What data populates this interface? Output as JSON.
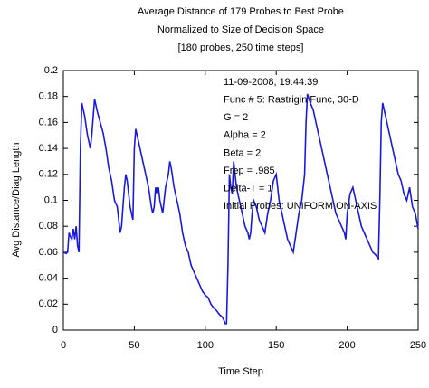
{
  "chart_data": {
    "type": "line",
    "title_lines": [
      "Average Distance of 179 Probes to Best Probe",
      "Normalized to Size of Decision Space",
      "[180 probes, 250 time steps]"
    ],
    "xlabel": "Time Step",
    "ylabel": "Avg Distance/Diag Length",
    "annotations": [
      "11-09-2008, 19:44:39",
      "Func # 5:  Rastrigin Func,  30-D",
      "G = 2",
      "Alpha = 2",
      "Beta = 2",
      "Frep = .985",
      "Delta-T = 1",
      "Initial Probes:  UNIFORM ON-AXIS"
    ],
    "xlim": [
      0,
      250
    ],
    "xticks": [
      0,
      50,
      100,
      150,
      200,
      250
    ],
    "ylim": [
      0,
      0.2
    ],
    "yticks": [
      0,
      0.02,
      0.04,
      0.06,
      0.08,
      0.1,
      0.12,
      0.14,
      0.16,
      0.18,
      0.2
    ],
    "grid": false,
    "series": [
      {
        "color": "#1a1adf",
        "x": [
          0,
          2,
          3,
          4,
          5,
          6,
          7,
          8,
          9,
          10,
          11,
          12,
          13,
          15,
          17,
          19,
          20,
          22,
          24,
          26,
          28,
          30,
          32,
          34,
          36,
          38,
          39,
          40,
          41,
          42,
          43,
          44,
          45,
          46,
          47,
          48,
          49,
          50,
          51,
          52,
          54,
          56,
          58,
          60,
          62,
          63,
          64,
          65,
          66,
          67,
          68,
          70,
          72,
          74,
          75,
          76,
          78,
          80,
          82,
          84,
          86,
          88,
          90,
          92,
          94,
          96,
          98,
          100,
          102,
          104,
          106,
          108,
          110,
          112,
          113,
          114,
          115,
          116,
          117,
          118,
          119,
          120,
          121,
          122,
          124,
          126,
          128,
          130,
          131,
          132,
          133,
          134,
          136,
          138,
          140,
          142,
          144,
          146,
          148,
          150,
          151,
          152,
          154,
          156,
          158,
          160,
          162,
          164,
          166,
          168,
          170,
          171,
          172,
          174,
          176,
          178,
          180,
          182,
          184,
          186,
          188,
          190,
          192,
          194,
          196,
          198,
          199,
          200,
          202,
          204,
          206,
          208,
          210,
          212,
          214,
          216,
          218,
          220,
          222,
          223,
          224,
          225,
          227,
          230,
          232,
          234,
          236,
          238,
          240,
          242,
          244,
          246,
          248,
          250
        ],
        "values": [
          0.06,
          0.059,
          0.06,
          0.075,
          0.072,
          0.07,
          0.078,
          0.07,
          0.08,
          0.065,
          0.06,
          0.14,
          0.175,
          0.165,
          0.15,
          0.14,
          0.15,
          0.178,
          0.168,
          0.16,
          0.152,
          0.14,
          0.125,
          0.115,
          0.1,
          0.095,
          0.085,
          0.075,
          0.08,
          0.095,
          0.11,
          0.12,
          0.115,
          0.105,
          0.095,
          0.09,
          0.085,
          0.14,
          0.155,
          0.15,
          0.14,
          0.13,
          0.12,
          0.11,
          0.095,
          0.09,
          0.095,
          0.11,
          0.105,
          0.11,
          0.1,
          0.09,
          0.11,
          0.12,
          0.13,
          0.125,
          0.11,
          0.1,
          0.09,
          0.075,
          0.065,
          0.06,
          0.05,
          0.045,
          0.04,
          0.035,
          0.03,
          0.027,
          0.025,
          0.02,
          0.017,
          0.015,
          0.012,
          0.01,
          0.008,
          0.005,
          0.005,
          0.05,
          0.12,
          0.11,
          0.105,
          0.13,
          0.12,
          0.11,
          0.1,
          0.09,
          0.08,
          0.075,
          0.07,
          0.075,
          0.09,
          0.1,
          0.095,
          0.085,
          0.08,
          0.075,
          0.09,
          0.1,
          0.115,
          0.12,
          0.11,
          0.1,
          0.09,
          0.08,
          0.07,
          0.065,
          0.06,
          0.075,
          0.09,
          0.1,
          0.12,
          0.16,
          0.182,
          0.175,
          0.17,
          0.16,
          0.15,
          0.14,
          0.13,
          0.12,
          0.11,
          0.1,
          0.09,
          0.085,
          0.08,
          0.075,
          0.07,
          0.09,
          0.105,
          0.11,
          0.1,
          0.09,
          0.08,
          0.075,
          0.07,
          0.065,
          0.06,
          0.058,
          0.055,
          0.1,
          0.16,
          0.175,
          0.165,
          0.15,
          0.14,
          0.13,
          0.12,
          0.115,
          0.105,
          0.1,
          0.11,
          0.095,
          0.09,
          0.078
        ]
      }
    ]
  }
}
